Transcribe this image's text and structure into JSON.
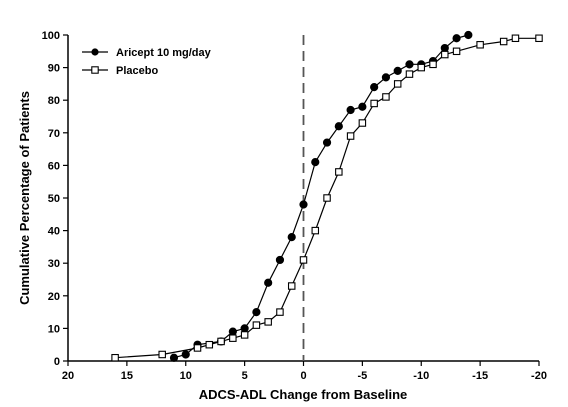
{
  "chart_data": {
    "type": "line",
    "xlabel": "ADCS-ADL Change from Baseline",
    "ylabel": "Cumulative Percentage of Patients",
    "xlim": [
      20,
      -20
    ],
    "ylim": [
      0,
      100
    ],
    "x_ticks": [
      20,
      15,
      10,
      5,
      0,
      -5,
      -10,
      -15,
      -20
    ],
    "y_ticks": [
      0,
      10,
      20,
      30,
      40,
      50,
      60,
      70,
      80,
      90,
      100
    ],
    "reference_line": {
      "x": 0,
      "style": "dashed"
    },
    "legend_position": "top-left",
    "grid": false,
    "series": [
      {
        "name": "Aricept 10 mg/day",
        "marker": "filled-circle",
        "color": "#000000",
        "points": [
          [
            11,
            1
          ],
          [
            10,
            2
          ],
          [
            9,
            5
          ],
          [
            7,
            6
          ],
          [
            6,
            9
          ],
          [
            5,
            10
          ],
          [
            4,
            15
          ],
          [
            3,
            24
          ],
          [
            2,
            31
          ],
          [
            1,
            38
          ],
          [
            0,
            48
          ],
          [
            -1,
            61
          ],
          [
            -2,
            67
          ],
          [
            -3,
            72
          ],
          [
            -4,
            77
          ],
          [
            -5,
            78
          ],
          [
            -6,
            84
          ],
          [
            -7,
            87
          ],
          [
            -8,
            89
          ],
          [
            -9,
            91
          ],
          [
            -10,
            91
          ],
          [
            -11,
            92
          ],
          [
            -12,
            96
          ],
          [
            -13,
            99
          ],
          [
            -14,
            100
          ]
        ]
      },
      {
        "name": "Placebo",
        "marker": "open-square",
        "color": "#000000",
        "points": [
          [
            16,
            1
          ],
          [
            12,
            2
          ],
          [
            9,
            4
          ],
          [
            8,
            5
          ],
          [
            7,
            6
          ],
          [
            6,
            7
          ],
          [
            5,
            8
          ],
          [
            4,
            11
          ],
          [
            3,
            12
          ],
          [
            2,
            15
          ],
          [
            1,
            23
          ],
          [
            0,
            31
          ],
          [
            -1,
            40
          ],
          [
            -2,
            50
          ],
          [
            -3,
            58
          ],
          [
            -4,
            69
          ],
          [
            -5,
            73
          ],
          [
            -6,
            79
          ],
          [
            -7,
            81
          ],
          [
            -8,
            85
          ],
          [
            -9,
            88
          ],
          [
            -10,
            90
          ],
          [
            -11,
            91
          ],
          [
            -12,
            94
          ],
          [
            -13,
            95
          ],
          [
            -15,
            97
          ],
          [
            -17,
            98
          ],
          [
            -18,
            99
          ],
          [
            -20,
            99
          ]
        ]
      }
    ]
  }
}
